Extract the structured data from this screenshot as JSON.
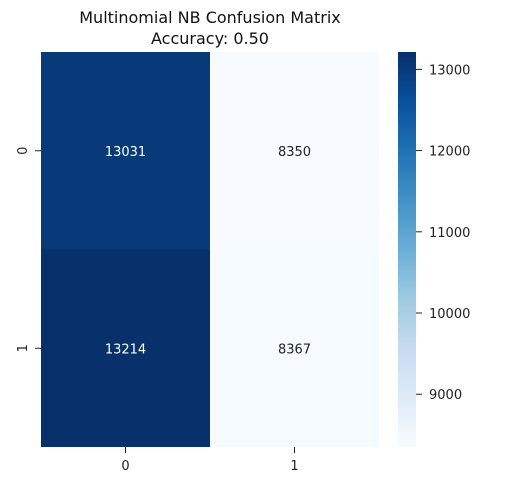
{
  "chart_data": {
    "type": "heatmap",
    "title_lines": [
      "Multinomial NB Confusion Matrix",
      "Accuracy: 0.50"
    ],
    "x_tick_labels": [
      "0",
      "1"
    ],
    "y_tick_labels": [
      "0",
      "1"
    ],
    "matrix": [
      [
        13031,
        8350
      ],
      [
        13214,
        8367
      ]
    ],
    "colorbar": {
      "min": 8350,
      "max": 13214,
      "ticks": [
        9000,
        10000,
        11000,
        12000,
        13000
      ]
    },
    "colormap": [
      "#f7fbff",
      "#deebf7",
      "#c6dbef",
      "#9ecae1",
      "#6baed6",
      "#4292c6",
      "#2171b5",
      "#08519c",
      "#08306b"
    ]
  }
}
